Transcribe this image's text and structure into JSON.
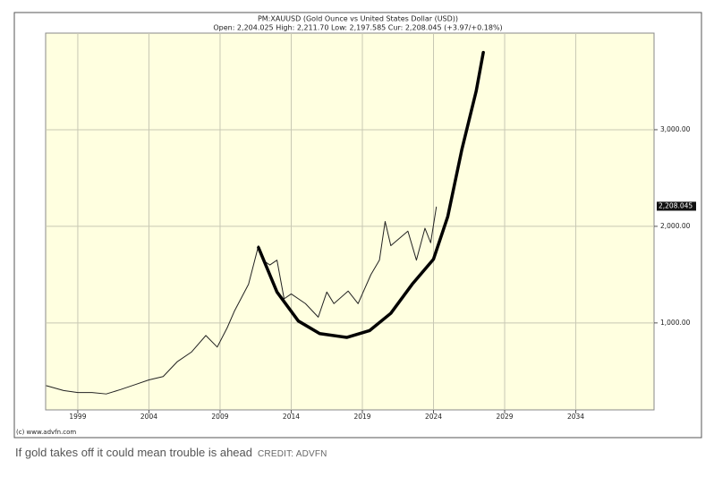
{
  "chart_data": {
    "type": "line",
    "title": "PM:XAUUSD (Gold Ounce vs United States Dollar (USD))",
    "subtitle": "Open: 2,204.025 High: 2,211.70 Low: 2,197.585 Cur: 2,208.045 (+3.97/+0.18%)",
    "watermark": "(c) www.advfn.com",
    "current_price": {
      "value": 2208.045,
      "label": "2,208.045"
    },
    "xlim": [
      1996.74,
      2039.5
    ],
    "xticks": [
      1999,
      2004,
      2009,
      2014,
      2019,
      2024,
      2029,
      2034
    ],
    "ylim": [
      100,
      4000
    ],
    "yticks": [
      {
        "value": 1000,
        "label": "1,000.00"
      },
      {
        "value": 2000,
        "label": "2,000.00"
      },
      {
        "value": 3000,
        "label": "3,000.00"
      }
    ],
    "grid": true,
    "series": [
      {
        "color": "#222222",
        "x": [
          1996.8,
          1998,
          1999,
          2000,
          2001,
          2002,
          2003,
          2004,
          2005,
          2006,
          2007,
          2008,
          2008.8,
          2009.5,
          2010,
          2011,
          2011.7,
          2012,
          2012.5,
          2013,
          2013.5,
          2014,
          2015,
          2015.9,
          2016.5,
          2017,
          2018,
          2018.7,
          2019,
          2019.6,
          2020.2,
          2020.6,
          2021,
          2022.2,
          2022.8,
          2023.4,
          2023.8,
          2024.2
        ],
        "values": [
          350,
          300,
          280,
          280,
          265,
          310,
          360,
          410,
          445,
          600,
          700,
          870,
          750,
          950,
          1120,
          1400,
          1800,
          1650,
          1600,
          1650,
          1250,
          1300,
          1200,
          1060,
          1320,
          1200,
          1330,
          1200,
          1300,
          1500,
          1650,
          2050,
          1800,
          1950,
          1650,
          1980,
          1830,
          2200
        ]
      },
      {
        "color": "#000000",
        "x": [
          2011.7,
          2013,
          2014.5,
          2016,
          2017.9,
          2019.5,
          2021,
          2022.5,
          2024,
          2025,
          2026,
          2027,
          2027.5
        ],
        "values": [
          1780,
          1320,
          1020,
          890,
          850,
          920,
          1100,
          1400,
          1660,
          2100,
          2800,
          3400,
          3800
        ]
      }
    ],
    "caption": "If gold takes off it could mean trouble is ahead",
    "credit": "CREDIT: ADVFN"
  }
}
